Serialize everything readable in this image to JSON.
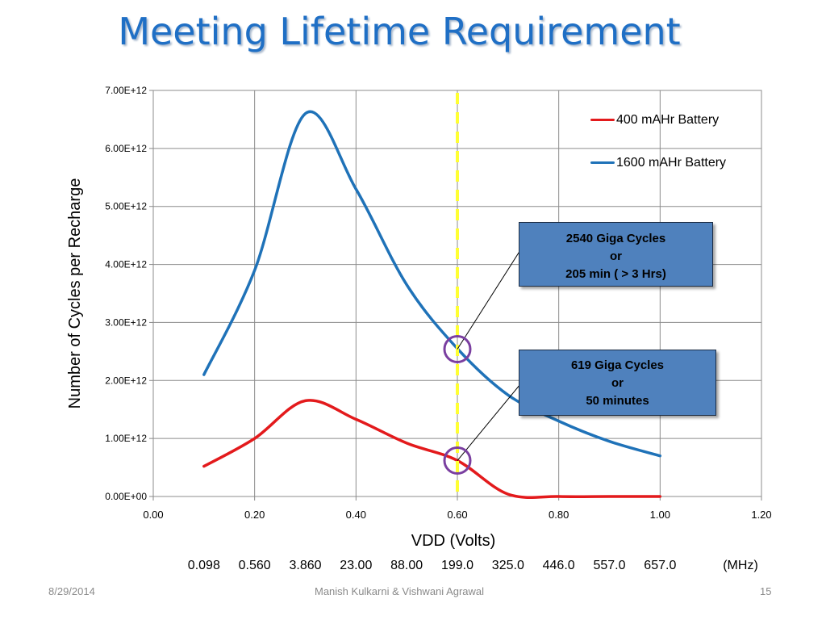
{
  "slide": {
    "title": "Meeting Lifetime Requirement",
    "footer_date": "8/29/2014",
    "footer_authors": "Manish Kulkarni & Vishwani Agrawal",
    "page_number": "15"
  },
  "frequency_row": {
    "values": [
      "0.098",
      "0.560",
      "3.860",
      "23.00",
      "88.00",
      "199.0",
      "325.0",
      "446.0",
      "557.0",
      "657.0"
    ],
    "unit": "(MHz)"
  },
  "callouts": [
    {
      "lines": [
        "2540 Giga Cycles",
        "or",
        "205 min ( > 3 Hrs)"
      ],
      "target_x": 0.6,
      "target_y": 2540000000000.0
    },
    {
      "lines": [
        "619 Giga Cycles",
        "or",
        "50 minutes"
      ],
      "target_x": 0.6,
      "target_y": 619000000000.0
    }
  ],
  "chart_data": {
    "type": "line",
    "title": "",
    "xlabel": "VDD (Volts)",
    "ylabel": "Number of Cycles per Recharge",
    "xlim": [
      0,
      1.2
    ],
    "ylim": [
      0,
      7000000000000.0
    ],
    "x_ticks": [
      0,
      0.2,
      0.4,
      0.6,
      0.8,
      1.0,
      1.2
    ],
    "x_tick_labels": [
      "0.00",
      "0.20",
      "0.40",
      "0.60",
      "0.80",
      "1.00",
      "1.20"
    ],
    "y_ticks": [
      0,
      1000000000000.0,
      2000000000000.0,
      3000000000000.0,
      4000000000000.0,
      5000000000000.0,
      6000000000000.0,
      7000000000000.0
    ],
    "y_tick_labels": [
      "0.00E+00",
      "1.00E+12",
      "2.00E+12",
      "3.00E+12",
      "4.00E+12",
      "5.00E+12",
      "6.00E+12",
      "7.00E+12"
    ],
    "grid": true,
    "legend_position": "top-right",
    "series": [
      {
        "name": "400 mAHr Battery",
        "color": "#e31a1c",
        "x": [
          0.1,
          0.2,
          0.3,
          0.4,
          0.5,
          0.6,
          0.7,
          0.8,
          0.9,
          1.0
        ],
        "y": [
          520000000000.0,
          1000000000000.0,
          1650000000000.0,
          1330000000000.0,
          920000000000.0,
          620000000000.0,
          40000000000.0,
          0.0,
          0.0,
          0.0
        ]
      },
      {
        "name": "1600 mAHr Battery",
        "color": "#1f72b8",
        "x": [
          0.1,
          0.2,
          0.3,
          0.4,
          0.5,
          0.6,
          0.7,
          0.8,
          0.9,
          1.0
        ],
        "y": [
          2100000000000.0,
          3900000000000.0,
          6600000000000.0,
          5300000000000.0,
          3650000000000.0,
          2550000000000.0,
          1750000000000.0,
          1300000000000.0,
          950000000000.0,
          700000000000.0
        ]
      }
    ],
    "reference_line": {
      "x": 0.6,
      "color": "#ffff33",
      "style": "dashed"
    },
    "markers": [
      {
        "x": 0.6,
        "y": 2540000000000.0,
        "color": "#7a3fa0",
        "shape": "circle"
      },
      {
        "x": 0.6,
        "y": 619000000000.0,
        "color": "#7a3fa0",
        "shape": "circle"
      }
    ]
  }
}
